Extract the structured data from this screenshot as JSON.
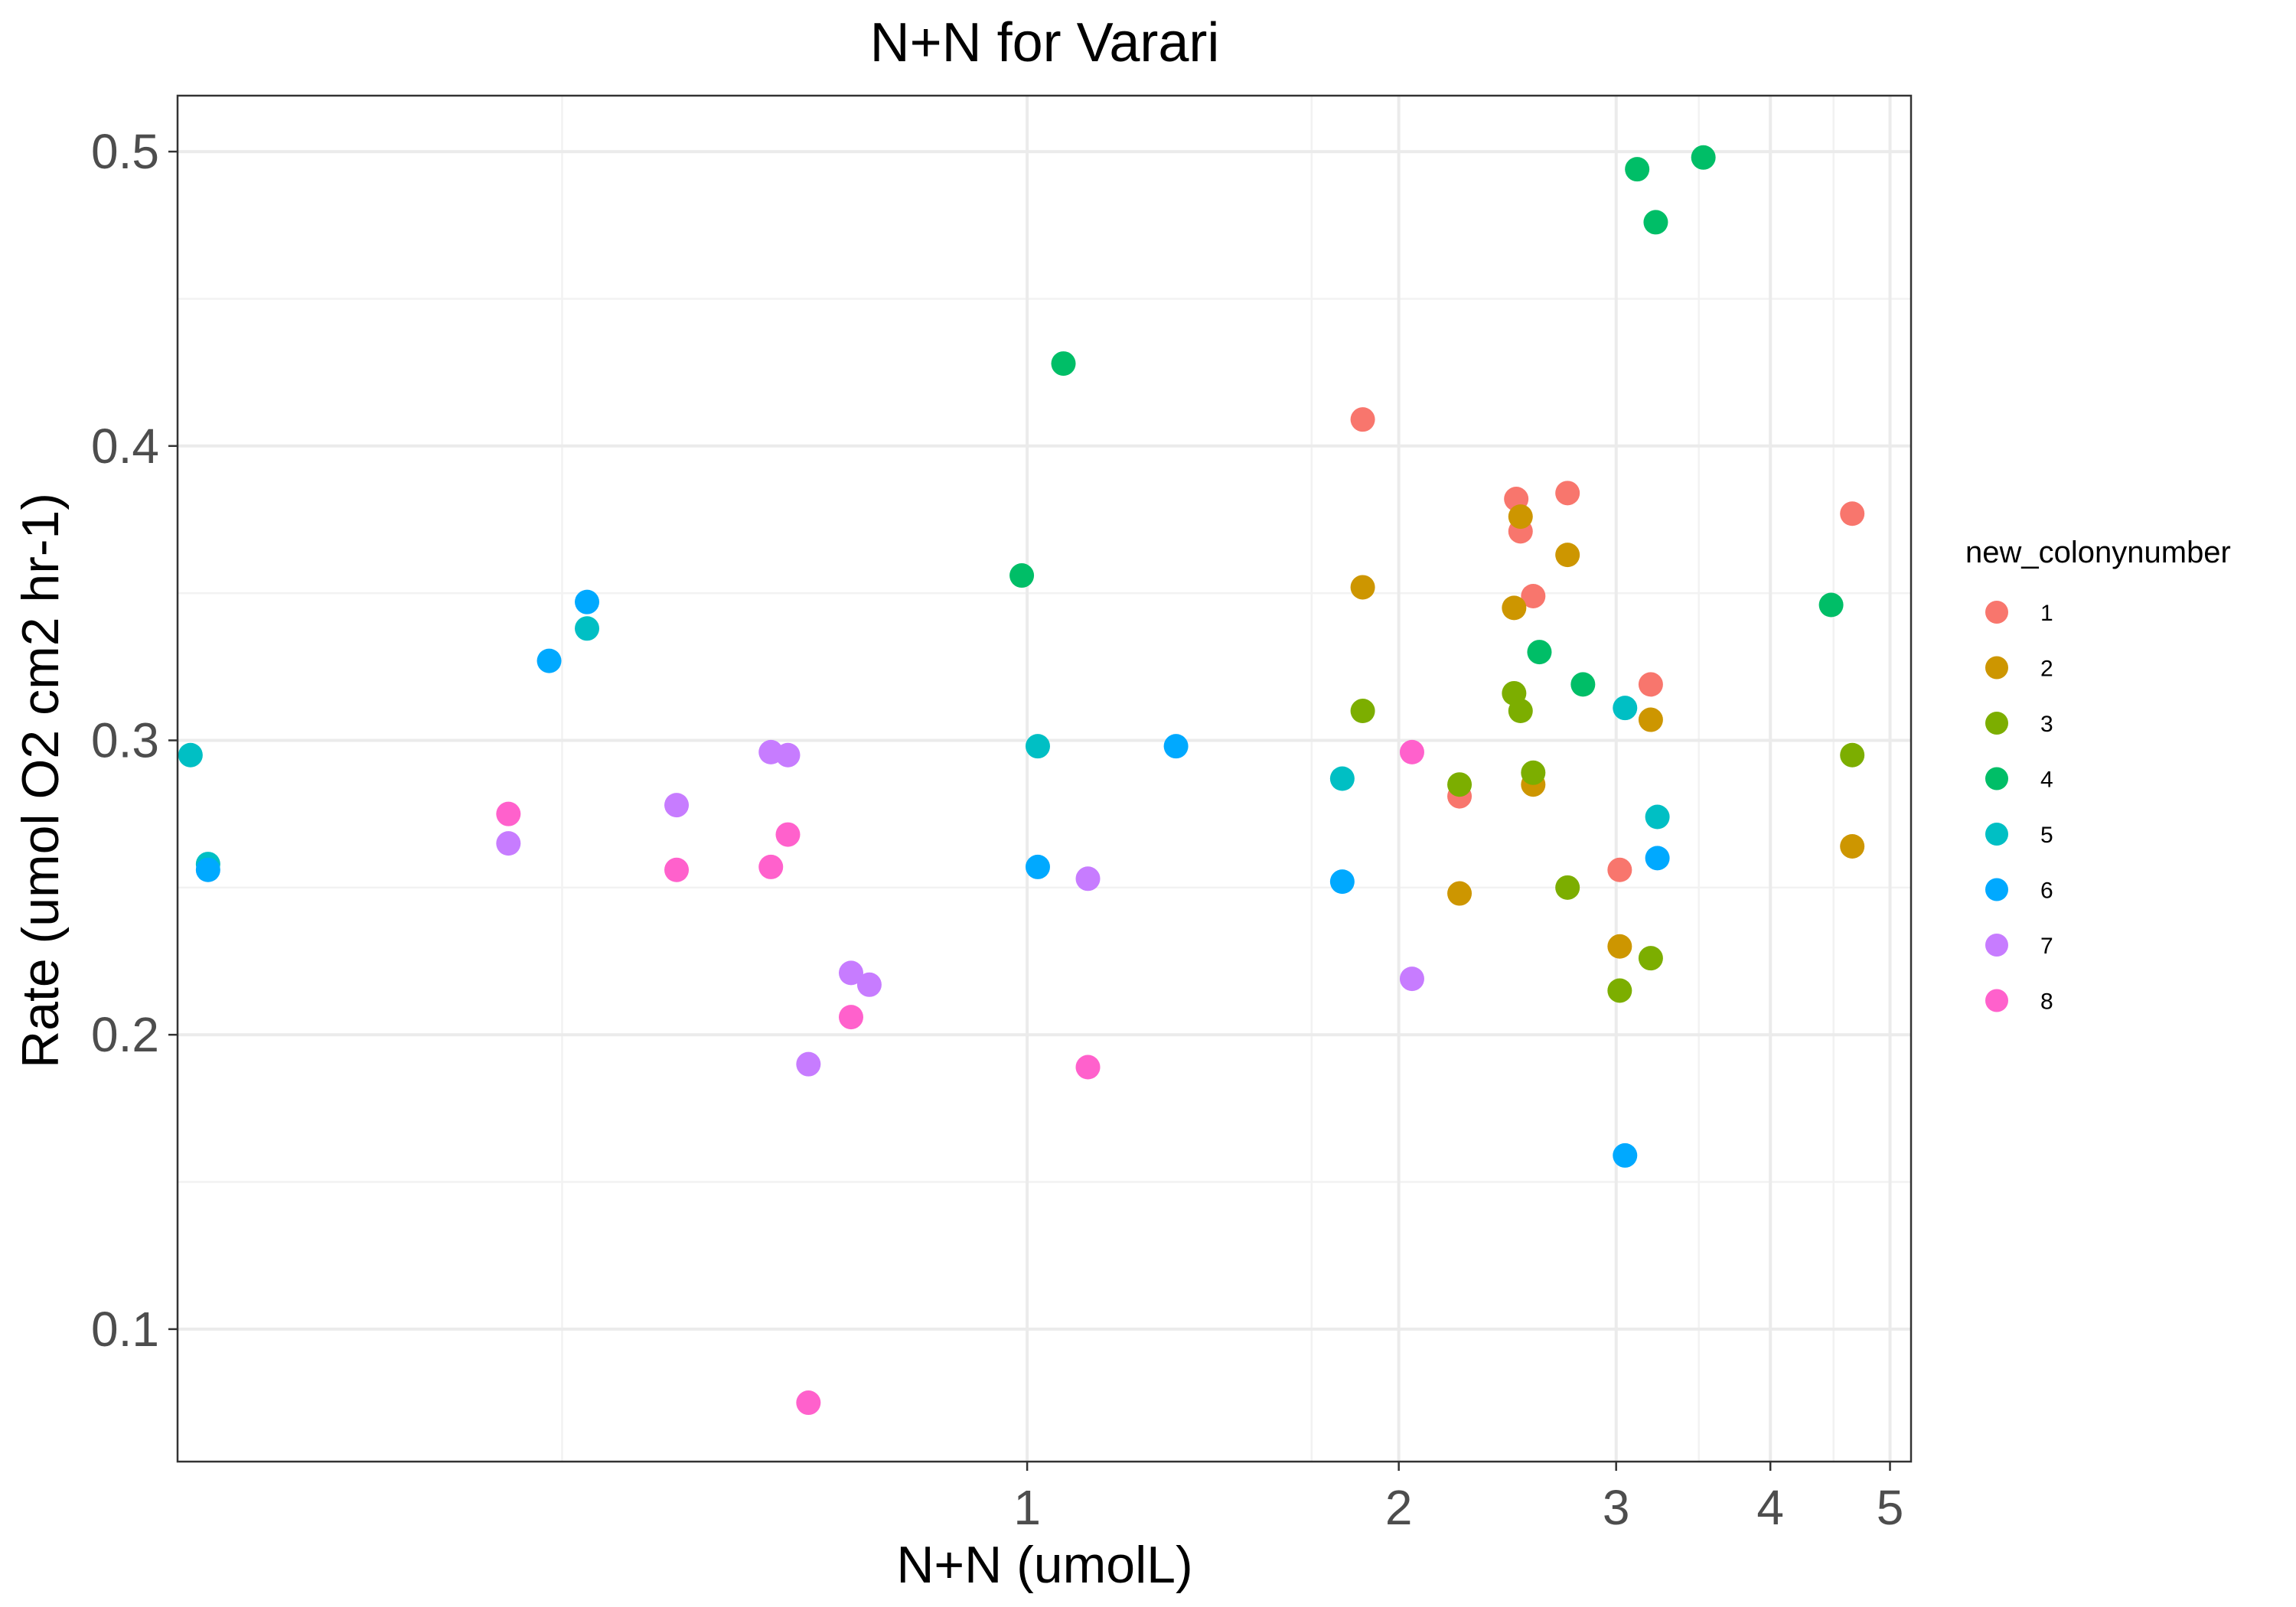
{
  "chart_data": {
    "type": "scatter",
    "title": "N+N for Varari",
    "xlabel": "N+N (umolL)",
    "ylabel": "Rate (umol O2 cm2 hr-1)",
    "x_scale": "log10",
    "xlim": [
      0.205,
      5.2
    ],
    "ylim": [
      0.055,
      0.519
    ],
    "x_ticks": [
      1,
      2,
      3,
      4,
      5
    ],
    "x_tick_labels": [
      "1",
      "2",
      "3",
      "4",
      "5"
    ],
    "x_minor_gridlines": [
      0.42,
      1.7,
      3.5,
      4.5
    ],
    "y_ticks": [
      0.1,
      0.2,
      0.3,
      0.4,
      0.5
    ],
    "y_tick_labels": [
      "0.1",
      "0.2",
      "0.3",
      "0.4",
      "0.5"
    ],
    "y_minor_gridlines": [
      0.15,
      0.25,
      0.35,
      0.45
    ],
    "grid": true,
    "legend": {
      "title": "new_colonynumber",
      "position": "right"
    },
    "series": [
      {
        "name": "1",
        "color": "#F8766D",
        "points": [
          [
            1.87,
            0.409
          ],
          [
            2.49,
            0.382
          ],
          [
            2.74,
            0.384
          ],
          [
            2.51,
            0.371
          ],
          [
            2.57,
            0.349
          ],
          [
            4.66,
            0.377
          ],
          [
            3.2,
            0.319
          ],
          [
            2.24,
            0.281
          ],
          [
            3.02,
            0.256
          ]
        ]
      },
      {
        "name": "2",
        "color": "#CD9600",
        "points": [
          [
            2.51,
            0.376
          ],
          [
            2.74,
            0.363
          ],
          [
            1.87,
            0.352
          ],
          [
            2.48,
            0.345
          ],
          [
            3.2,
            0.307
          ],
          [
            2.57,
            0.285
          ],
          [
            4.66,
            0.264
          ],
          [
            2.24,
            0.248
          ],
          [
            3.02,
            0.23
          ]
        ]
      },
      {
        "name": "3",
        "color": "#7CAE00",
        "points": [
          [
            1.87,
            0.31
          ],
          [
            2.48,
            0.316
          ],
          [
            2.51,
            0.31
          ],
          [
            2.57,
            0.289
          ],
          [
            2.24,
            0.285
          ],
          [
            4.66,
            0.295
          ],
          [
            2.74,
            0.25
          ],
          [
            3.2,
            0.226
          ],
          [
            3.02,
            0.215
          ]
        ]
      },
      {
        "name": "4",
        "color": "#00BE67",
        "points": [
          [
            3.12,
            0.494
          ],
          [
            3.53,
            0.498
          ],
          [
            3.23,
            0.476
          ],
          [
            1.07,
            0.428
          ],
          [
            0.99,
            0.356
          ],
          [
            4.48,
            0.346
          ],
          [
            2.6,
            0.33
          ],
          [
            2.82,
            0.319
          ]
        ]
      },
      {
        "name": "5",
        "color": "#00BFC4",
        "points": [
          [
            0.21,
            0.295
          ],
          [
            0.217,
            0.258
          ],
          [
            0.44,
            0.338
          ],
          [
            1.02,
            0.298
          ],
          [
            1.8,
            0.287
          ],
          [
            3.05,
            0.311
          ],
          [
            3.24,
            0.274
          ]
        ]
      },
      {
        "name": "6",
        "color": "#00A9FF",
        "points": [
          [
            0.217,
            0.256
          ],
          [
            0.44,
            0.347
          ],
          [
            0.41,
            0.327
          ],
          [
            1.02,
            0.257
          ],
          [
            1.32,
            0.298
          ],
          [
            1.8,
            0.252
          ],
          [
            3.24,
            0.26
          ],
          [
            3.05,
            0.159
          ]
        ]
      },
      {
        "name": "7",
        "color": "#C77CFF",
        "points": [
          [
            0.38,
            0.265
          ],
          [
            0.52,
            0.278
          ],
          [
            0.62,
            0.296
          ],
          [
            0.64,
            0.295
          ],
          [
            1.12,
            0.253
          ],
          [
            0.72,
            0.221
          ],
          [
            0.745,
            0.217
          ],
          [
            0.665,
            0.19
          ],
          [
            2.05,
            0.219
          ]
        ]
      },
      {
        "name": "8",
        "color": "#FF61CC",
        "points": [
          [
            0.38,
            0.275
          ],
          [
            0.52,
            0.256
          ],
          [
            0.62,
            0.257
          ],
          [
            0.64,
            0.268
          ],
          [
            0.72,
            0.206
          ],
          [
            1.12,
            0.189
          ],
          [
            2.05,
            0.296
          ],
          [
            0.665,
            0.075
          ]
        ]
      }
    ]
  }
}
